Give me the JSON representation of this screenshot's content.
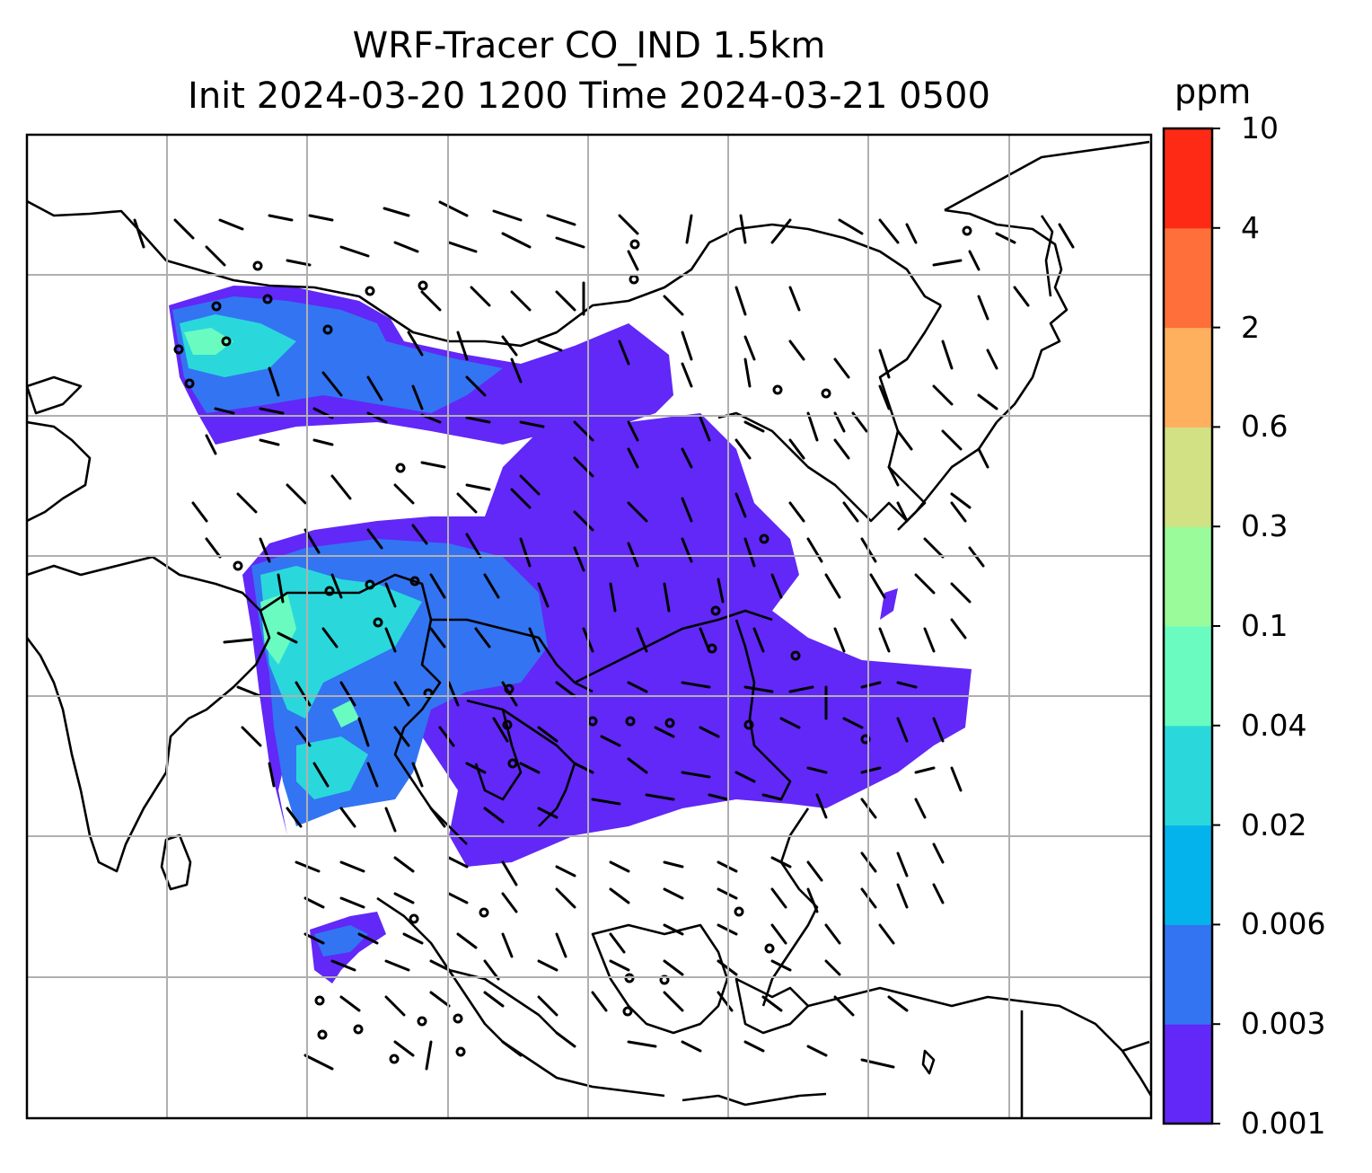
{
  "title": {
    "line1": "WRF-Tracer CO_IND 1.5km",
    "line2": "Init 2024-03-20 1200 Time 2024-03-21 0500"
  },
  "colorbar": {
    "unit": "ppm",
    "levels": [
      "0.001",
      "0.003",
      "0.006",
      "0.02",
      "0.04",
      "0.1",
      "0.3",
      "0.6",
      "2",
      "4",
      "10"
    ],
    "colors": [
      "#6128f7",
      "#3374f2",
      "#04b2ec",
      "#2ad8dc",
      "#6afbc1",
      "#9afb9b",
      "#d1e183",
      "#feb05e",
      "#fe6f3a",
      "#fe2a15"
    ]
  },
  "map": {
    "background": "#ffffff",
    "coastline_color": "#000000",
    "grid_color": "#b0b0b0",
    "barb_color": "#000000"
  }
}
